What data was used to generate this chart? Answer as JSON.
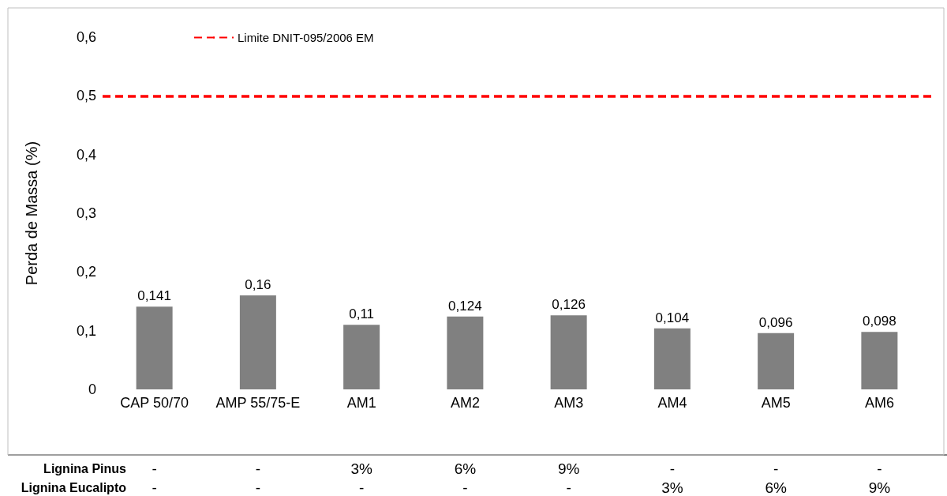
{
  "chart_data": {
    "type": "bar",
    "ylabel": "Perda de Massa (%)",
    "categories": [
      "CAP 50/70",
      "AMP 55/75-E",
      "AM1",
      "AM2",
      "AM3",
      "AM4",
      "AM5",
      "AM6"
    ],
    "values": [
      0.141,
      0.16,
      0.11,
      0.124,
      0.126,
      0.104,
      0.096,
      0.098
    ],
    "value_labels": [
      "0,141",
      "0,16",
      "0,11",
      "0,124",
      "0,126",
      "0,104",
      "0,096",
      "0,098"
    ],
    "color": "#808080",
    "ylim": [
      0,
      0.6
    ],
    "yticks": [
      0,
      {
        "value": 0.1,
        "label": "0,1"
      },
      {
        "value": 0.2,
        "label": "0,2"
      },
      {
        "value": 0.3,
        "label": "0,3"
      },
      {
        "value": 0.4,
        "label": "0,4"
      },
      {
        "value": 0.5,
        "label": "0,5"
      },
      {
        "value": 0.6,
        "label": "0,6"
      }
    ],
    "ref_lines": [
      {
        "axis": "y",
        "value": 0.5,
        "label": "Limite DNIT-095/2006 EM",
        "color": "#ff0000",
        "line_style": "dashed"
      }
    ],
    "legend": "top left",
    "grid": false,
    "annotations": [
      "Lignina Pinus",
      "-",
      "-",
      "3%",
      "6%",
      "9%",
      "-",
      "-",
      "-",
      "Lignina Eucalipto",
      "-",
      "-",
      "-",
      "-",
      "-",
      "3%",
      "6%",
      "9%"
    ]
  }
}
